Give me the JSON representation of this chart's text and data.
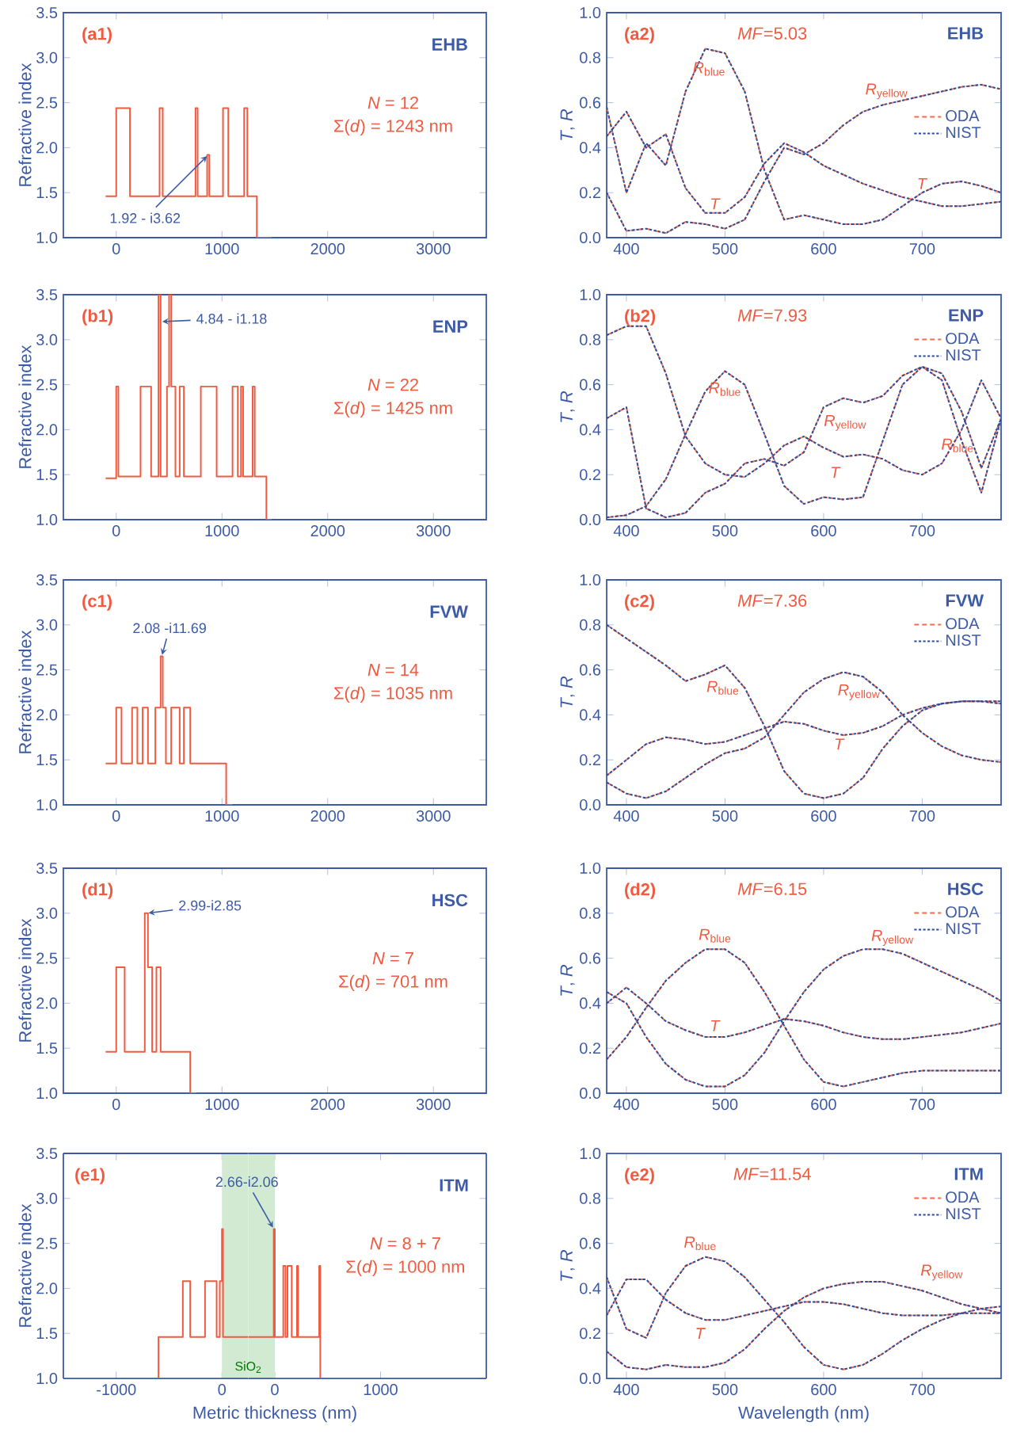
{
  "chart_data": [
    {
      "type": "step",
      "ylabel": "Refractive index",
      "xlim": [
        -500,
        3500
      ],
      "xticks": [
        0,
        1000,
        2000,
        3000
      ],
      "ylim": [
        1,
        3.5
      ],
      "yticks": [
        {
          "value": 1,
          "label": "1.0"
        },
        1.5,
        {
          "value": 2,
          "label": "2.0"
        },
        2.5,
        {
          "value": 3,
          "label": "3.0"
        },
        3.5
      ],
      "x": [
        -100,
        0,
        130,
        410,
        440,
        750,
        770,
        860,
        880,
        1010,
        1060,
        1210,
        1240,
        1330,
        1470
      ],
      "series": [
        {
          "color": "#f05a40",
          "values": [
            1.46,
            2.44,
            1.46,
            2.44,
            1.46,
            2.44,
            1.46,
            1.92,
            1.46,
            2.44,
            1.46,
            2.44,
            1.46,
            1.0,
            1.0
          ]
        }
      ],
      "annotations": [
        "(a1)",
        "EHB",
        "*N* = 12",
        "Σ(*d*) = 1243 nm",
        {
          "text": "1.92 - i3.62",
          "x": 870,
          "y": 1.92
        }
      ]
    },
    {
      "type": "line",
      "ylabel": "*T*, *R*",
      "xlim": [
        380,
        780
      ],
      "xticks": [
        400,
        500,
        600,
        700
      ],
      "ylim": [
        0,
        1
      ],
      "yticks": [
        {
          "value": 0,
          "label": "0.0"
        },
        0.2,
        0.4,
        0.6,
        0.8,
        {
          "value": 1,
          "label": "1.0"
        }
      ],
      "legend": "right",
      "x": [
        380,
        400,
        420,
        440,
        460,
        480,
        500,
        520,
        540,
        560,
        580,
        600,
        620,
        640,
        660,
        680,
        700,
        720,
        740,
        760,
        780
      ],
      "series": [
        {
          "name": "ODA",
          "color": "#f26b4a",
          "line_style": "dashed",
          "values": [
            0.45,
            0.56,
            0.4,
            0.46,
            0.22,
            0.11,
            0.11,
            0.18,
            0.33,
            0.42,
            0.38,
            0.32,
            0.28,
            0.24,
            0.21,
            0.18,
            0.16,
            0.14,
            0.14,
            0.15,
            0.16
          ]
        },
        {
          "color": "#f26b4a",
          "line_style": "dashed",
          "values": [
            0.58,
            0.2,
            0.42,
            0.32,
            0.65,
            0.84,
            0.82,
            0.65,
            0.3,
            0.08,
            0.1,
            0.08,
            0.06,
            0.06,
            0.08,
            0.14,
            0.2,
            0.24,
            0.25,
            0.23,
            0.2
          ]
        },
        {
          "color": "#f26b4a",
          "line_style": "dashed",
          "values": [
            0.2,
            0.03,
            0.04,
            0.02,
            0.07,
            0.06,
            0.04,
            0.08,
            0.25,
            0.4,
            0.37,
            0.42,
            0.5,
            0.56,
            0.59,
            0.61,
            0.63,
            0.65,
            0.67,
            0.68,
            0.66
          ]
        },
        {
          "name": "NIST",
          "color": "#2b4c9e",
          "line_style": "dotted",
          "values": [
            0.45,
            0.56,
            0.4,
            0.46,
            0.22,
            0.11,
            0.11,
            0.18,
            0.33,
            0.42,
            0.38,
            0.32,
            0.28,
            0.24,
            0.21,
            0.18,
            0.16,
            0.14,
            0.14,
            0.15,
            0.16
          ]
        },
        {
          "color": "#2b4c9e",
          "line_style": "dotted",
          "values": [
            0.58,
            0.2,
            0.42,
            0.32,
            0.65,
            0.84,
            0.82,
            0.65,
            0.3,
            0.08,
            0.1,
            0.08,
            0.06,
            0.06,
            0.08,
            0.14,
            0.2,
            0.24,
            0.25,
            0.23,
            0.2
          ]
        },
        {
          "color": "#2b4c9e",
          "line_style": "dotted",
          "values": [
            0.2,
            0.03,
            0.04,
            0.02,
            0.07,
            0.06,
            0.04,
            0.08,
            0.25,
            0.4,
            0.37,
            0.42,
            0.5,
            0.56,
            0.59,
            0.61,
            0.63,
            0.65,
            0.67,
            0.68,
            0.66
          ]
        }
      ],
      "annotations": [
        "(a2)",
        "*MF*=5.03",
        "EHB",
        "*R*$_{blue}$",
        "*T*",
        "*R*$_{yellow}$",
        "*T*"
      ]
    },
    {
      "type": "step",
      "ylabel": "Refractive index",
      "xlim": [
        -500,
        3500
      ],
      "xticks": [
        0,
        1000,
        2000,
        3000
      ],
      "ylim": [
        1,
        3.5
      ],
      "yticks": [
        {
          "value": 1,
          "label": "1.0"
        },
        1.5,
        {
          "value": 2,
          "label": "2.0"
        },
        2.5,
        {
          "value": 3,
          "label": "3.0"
        },
        3.5
      ],
      "x": [
        -100,
        0,
        20,
        230,
        330,
        400,
        420,
        480,
        500,
        520,
        560,
        600,
        640,
        800,
        950,
        1100,
        1150,
        1180,
        1200,
        1290,
        1310,
        1420,
        1470
      ],
      "series": [
        {
          "color": "#f05a40",
          "values": [
            1.46,
            2.48,
            1.48,
            2.48,
            1.48,
            3.5,
            1.48,
            2.48,
            3.5,
            2.48,
            1.48,
            2.48,
            1.48,
            2.48,
            1.48,
            2.48,
            1.48,
            2.48,
            1.48,
            2.48,
            1.48,
            1.0,
            1.0
          ]
        }
      ],
      "annotations": [
        "(b1)",
        "ENP",
        "*N* = 22",
        "Σ(*d*) = 1425 nm",
        {
          "text": "4.84 - i1.18",
          "x": 420,
          "y": 3.2
        }
      ]
    },
    {
      "type": "line",
      "ylabel": "*T*, *R*",
      "xlim": [
        380,
        780
      ],
      "xticks": [
        400,
        500,
        600,
        700
      ],
      "ylim": [
        0,
        1
      ],
      "yticks": [
        {
          "value": 0,
          "label": "0.0"
        },
        0.2,
        0.4,
        0.6,
        0.8,
        {
          "value": 1,
          "label": "1.0"
        }
      ],
      "legend": "top right",
      "x": [
        380,
        400,
        420,
        440,
        460,
        480,
        500,
        520,
        540,
        560,
        580,
        600,
        620,
        640,
        660,
        680,
        700,
        720,
        740,
        760,
        780
      ],
      "series": [
        {
          "name": "ODA",
          "color": "#f26b4a",
          "line_style": "dashed",
          "values": [
            0.82,
            0.86,
            0.86,
            0.65,
            0.37,
            0.25,
            0.2,
            0.19,
            0.25,
            0.33,
            0.37,
            0.32,
            0.28,
            0.29,
            0.27,
            0.22,
            0.2,
            0.25,
            0.4,
            0.62,
            0.45
          ]
        },
        {
          "color": "#f26b4a",
          "line_style": "dashed",
          "values": [
            0.01,
            0.02,
            0.06,
            0.18,
            0.38,
            0.57,
            0.66,
            0.6,
            0.38,
            0.15,
            0.07,
            0.1,
            0.09,
            0.1,
            0.35,
            0.6,
            0.68,
            0.62,
            0.35,
            0.12,
            0.45
          ]
        },
        {
          "color": "#f26b4a",
          "line_style": "dashed",
          "values": [
            0.45,
            0.5,
            0.05,
            0.01,
            0.03,
            0.12,
            0.16,
            0.25,
            0.27,
            0.24,
            0.3,
            0.5,
            0.54,
            0.52,
            0.55,
            0.64,
            0.68,
            0.65,
            0.48,
            0.23,
            0.45
          ]
        },
        {
          "name": "NIST",
          "color": "#2b4c9e",
          "line_style": "dotted",
          "values": [
            0.82,
            0.86,
            0.86,
            0.65,
            0.37,
            0.25,
            0.2,
            0.19,
            0.25,
            0.33,
            0.37,
            0.32,
            0.28,
            0.29,
            0.27,
            0.22,
            0.2,
            0.25,
            0.4,
            0.62,
            0.45
          ]
        },
        {
          "color": "#2b4c9e",
          "line_style": "dotted",
          "values": [
            0.01,
            0.02,
            0.06,
            0.18,
            0.38,
            0.57,
            0.66,
            0.6,
            0.38,
            0.15,
            0.07,
            0.1,
            0.09,
            0.1,
            0.35,
            0.6,
            0.68,
            0.62,
            0.35,
            0.12,
            0.45
          ]
        },
        {
          "color": "#2b4c9e",
          "line_style": "dotted",
          "values": [
            0.45,
            0.5,
            0.05,
            0.01,
            0.03,
            0.12,
            0.16,
            0.25,
            0.27,
            0.24,
            0.3,
            0.5,
            0.54,
            0.52,
            0.55,
            0.64,
            0.68,
            0.65,
            0.48,
            0.23,
            0.45
          ]
        }
      ],
      "annotations": [
        "(b2)",
        "*MF*=7.93",
        "ENP",
        "*R*$_{blue}$",
        "*R*$_{yellow}$",
        "*R*$_{blue}$",
        "*T*"
      ]
    },
    {
      "type": "step",
      "ylabel": "Refractive index",
      "xlim": [
        -500,
        3500
      ],
      "xticks": [
        0,
        1000,
        2000,
        3000
      ],
      "ylim": [
        1,
        3.5
      ],
      "yticks": [
        {
          "value": 1,
          "label": "1.0"
        },
        1.5,
        {
          "value": 2,
          "label": "2.0"
        },
        2.5,
        {
          "value": 3,
          "label": "3.0"
        },
        3.5
      ],
      "x": [
        -100,
        0,
        50,
        150,
        200,
        250,
        300,
        370,
        420,
        440,
        470,
        520,
        600,
        640,
        700,
        1040,
        1100
      ],
      "series": [
        {
          "color": "#f05a40",
          "values": [
            1.46,
            2.08,
            1.46,
            2.08,
            1.46,
            2.08,
            1.46,
            2.08,
            2.65,
            2.08,
            1.46,
            2.08,
            1.46,
            2.08,
            1.46,
            1.0,
            1.0
          ]
        }
      ],
      "annotations": [
        "(c1)",
        "FVW",
        "*N* = 14",
        "Σ(*d*) = 1035 nm",
        {
          "text": "2.08 -i11.69",
          "x": 430,
          "y": 2.65
        }
      ]
    },
    {
      "type": "line",
      "ylabel": "*T*, *R*",
      "xlim": [
        380,
        780
      ],
      "xticks": [
        400,
        500,
        600,
        700
      ],
      "ylim": [
        0,
        1
      ],
      "yticks": [
        {
          "value": 0,
          "label": "0.0"
        },
        0.2,
        0.4,
        0.6,
        0.8,
        {
          "value": 1,
          "label": "1.0"
        }
      ],
      "legend": "top right",
      "x": [
        380,
        400,
        420,
        440,
        460,
        480,
        500,
        520,
        540,
        560,
        580,
        600,
        620,
        640,
        660,
        680,
        700,
        720,
        740,
        760,
        780
      ],
      "series": [
        {
          "name": "ODA",
          "color": "#f26b4a",
          "line_style": "dashed",
          "values": [
            0.13,
            0.2,
            0.27,
            0.3,
            0.29,
            0.27,
            0.28,
            0.31,
            0.34,
            0.37,
            0.36,
            0.33,
            0.31,
            0.32,
            0.35,
            0.4,
            0.43,
            0.45,
            0.46,
            0.46,
            0.46
          ]
        },
        {
          "color": "#f26b4a",
          "line_style": "dashed",
          "values": [
            0.8,
            0.74,
            0.68,
            0.62,
            0.55,
            0.58,
            0.62,
            0.52,
            0.35,
            0.15,
            0.05,
            0.03,
            0.05,
            0.12,
            0.25,
            0.35,
            0.42,
            0.45,
            0.46,
            0.46,
            0.45
          ]
        },
        {
          "color": "#f26b4a",
          "line_style": "dashed",
          "values": [
            0.1,
            0.05,
            0.03,
            0.06,
            0.12,
            0.18,
            0.23,
            0.25,
            0.3,
            0.4,
            0.5,
            0.56,
            0.59,
            0.57,
            0.5,
            0.4,
            0.32,
            0.26,
            0.22,
            0.2,
            0.19
          ]
        },
        {
          "name": "NIST",
          "color": "#2b4c9e",
          "line_style": "dotted",
          "values": [
            0.13,
            0.2,
            0.27,
            0.3,
            0.29,
            0.27,
            0.28,
            0.31,
            0.34,
            0.37,
            0.36,
            0.33,
            0.31,
            0.32,
            0.35,
            0.4,
            0.43,
            0.45,
            0.46,
            0.46,
            0.46
          ]
        },
        {
          "color": "#2b4c9e",
          "line_style": "dotted",
          "values": [
            0.8,
            0.74,
            0.68,
            0.62,
            0.55,
            0.58,
            0.62,
            0.52,
            0.35,
            0.15,
            0.05,
            0.03,
            0.05,
            0.12,
            0.25,
            0.35,
            0.42,
            0.45,
            0.46,
            0.46,
            0.45
          ]
        },
        {
          "color": "#2b4c9e",
          "line_style": "dotted",
          "values": [
            0.1,
            0.05,
            0.03,
            0.06,
            0.12,
            0.18,
            0.23,
            0.25,
            0.3,
            0.4,
            0.5,
            0.56,
            0.59,
            0.57,
            0.5,
            0.4,
            0.32,
            0.26,
            0.22,
            0.2,
            0.19
          ]
        }
      ],
      "annotations": [
        "(c2)",
        "*MF*=7.36",
        "FVW",
        "*R*$_{blue}$",
        "*R*$_{yellow}$",
        "*T*"
      ]
    },
    {
      "type": "step",
      "ylabel": "Refractive index",
      "xlim": [
        -500,
        3500
      ],
      "xticks": [
        0,
        1000,
        2000,
        3000
      ],
      "ylim": [
        1,
        3.5
      ],
      "yticks": [
        {
          "value": 1,
          "label": "1.0"
        },
        1.5,
        {
          "value": 2,
          "label": "2.0"
        },
        2.5,
        {
          "value": 3,
          "label": "3.0"
        },
        3.5
      ],
      "x": [
        -100,
        0,
        80,
        270,
        300,
        340,
        380,
        420,
        700,
        760
      ],
      "series": [
        {
          "color": "#f05a40",
          "values": [
            1.46,
            2.4,
            1.46,
            3.0,
            2.4,
            1.46,
            2.4,
            1.46,
            1.0,
            1.0
          ]
        }
      ],
      "annotations": [
        "(d1)",
        "HSC",
        "*N* = 7",
        "Σ(*d*) = 701 nm",
        {
          "text": "2.99-i2.85",
          "x": 290,
          "y": 3.0
        }
      ]
    },
    {
      "type": "line",
      "ylabel": "*T*, *R*",
      "xlim": [
        380,
        780
      ],
      "xticks": [
        400,
        500,
        600,
        700
      ],
      "ylim": [
        0,
        1
      ],
      "yticks": [
        {
          "value": 0,
          "label": "0.0"
        },
        0.2,
        0.4,
        0.6,
        0.8,
        {
          "value": 1,
          "label": "1.0"
        }
      ],
      "legend": "top right",
      "x": [
        380,
        400,
        420,
        440,
        460,
        480,
        500,
        520,
        540,
        560,
        580,
        600,
        620,
        640,
        660,
        680,
        700,
        720,
        740,
        760,
        780
      ],
      "series": [
        {
          "name": "ODA",
          "color": "#f26b4a",
          "line_style": "dashed",
          "values": [
            0.4,
            0.47,
            0.4,
            0.32,
            0.28,
            0.25,
            0.25,
            0.27,
            0.3,
            0.33,
            0.32,
            0.3,
            0.27,
            0.25,
            0.24,
            0.24,
            0.25,
            0.26,
            0.27,
            0.29,
            0.31
          ]
        },
        {
          "color": "#f26b4a",
          "line_style": "dashed",
          "values": [
            0.15,
            0.25,
            0.38,
            0.5,
            0.58,
            0.64,
            0.64,
            0.58,
            0.45,
            0.3,
            0.15,
            0.05,
            0.03,
            0.05,
            0.07,
            0.09,
            0.1,
            0.1,
            0.1,
            0.1,
            0.1
          ]
        },
        {
          "color": "#f26b4a",
          "line_style": "dashed",
          "values": [
            0.45,
            0.4,
            0.25,
            0.13,
            0.06,
            0.03,
            0.03,
            0.08,
            0.18,
            0.32,
            0.45,
            0.55,
            0.61,
            0.64,
            0.64,
            0.62,
            0.58,
            0.54,
            0.5,
            0.46,
            0.41
          ]
        },
        {
          "name": "NIST",
          "color": "#2b4c9e",
          "line_style": "dotted",
          "values": [
            0.4,
            0.47,
            0.4,
            0.32,
            0.28,
            0.25,
            0.25,
            0.27,
            0.3,
            0.33,
            0.32,
            0.3,
            0.27,
            0.25,
            0.24,
            0.24,
            0.25,
            0.26,
            0.27,
            0.29,
            0.31
          ]
        },
        {
          "color": "#2b4c9e",
          "line_style": "dotted",
          "values": [
            0.15,
            0.25,
            0.38,
            0.5,
            0.58,
            0.64,
            0.64,
            0.58,
            0.45,
            0.3,
            0.15,
            0.05,
            0.03,
            0.05,
            0.07,
            0.09,
            0.1,
            0.1,
            0.1,
            0.1,
            0.1
          ]
        },
        {
          "color": "#2b4c9e",
          "line_style": "dotted",
          "values": [
            0.45,
            0.4,
            0.25,
            0.13,
            0.06,
            0.03,
            0.03,
            0.08,
            0.18,
            0.32,
            0.45,
            0.55,
            0.61,
            0.64,
            0.64,
            0.62,
            0.58,
            0.54,
            0.5,
            0.46,
            0.41
          ]
        }
      ],
      "annotations": [
        "(d2)",
        "*MF*=6.15",
        "HSC",
        "*R*$_{blue}$",
        "*R*$_{yellow}$",
        "*T*"
      ]
    },
    {
      "type": "step",
      "ylabel": "Refractive index",
      "xlabel": "Metric thickness (nm)",
      "xlim": [
        -1500,
        250
      ],
      "xticks": [
        -1000,
        0
      ],
      "ylim": [
        1,
        3.5
      ],
      "yticks": [
        {
          "value": 1,
          "label": "1.0"
        },
        1.5,
        {
          "value": 2,
          "label": "2.0"
        },
        2.5,
        {
          "value": 3,
          "label": "3.0"
        },
        3.5
      ],
      "x": [
        -650,
        -600,
        -370,
        -300,
        -160,
        -50,
        -20,
        0,
        10,
        250
      ],
      "series": [
        {
          "color": "#f05a40",
          "values": [
            1.0,
            1.46,
            2.08,
            1.46,
            2.08,
            1.46,
            2.08,
            2.66,
            1.46,
            1.46
          ]
        }
      ],
      "bands": [
        {
          "axis": "x",
          "from": 0,
          "to": 250,
          "color": "#d2ead2"
        }
      ],
      "annotations": [
        "(e1)"
      ]
    },
    {
      "type": "step",
      "tick_labels": "x",
      "xlim": [
        -250,
        2000
      ],
      "xticks": [
        0,
        1000
      ],
      "ylim": [
        1,
        3.5
      ],
      "yticks": [
        1,
        1.5,
        2,
        2.5,
        3,
        3.5
      ],
      "x": [
        -250,
        -10,
        0,
        80,
        100,
        120,
        160,
        210,
        220,
        420,
        430,
        500
      ],
      "series": [
        {
          "color": "#f05a40",
          "values": [
            1.46,
            2.66,
            1.46,
            2.25,
            1.46,
            2.25,
            1.46,
            2.25,
            1.46,
            2.25,
            1.0,
            1.0
          ]
        }
      ],
      "bands": [
        {
          "axis": "x",
          "from": -250,
          "to": 0,
          "label": "SiO$_{2}$",
          "color": "#d2ead2"
        }
      ],
      "annotations": [
        "ITM",
        "*N* = 8 + 7",
        "Σ(*d*) = 1000 nm",
        {
          "text": "2.66-i2.06",
          "x": -10,
          "y": 2.66
        }
      ]
    },
    {
      "type": "line",
      "ylabel": "*T*, *R*",
      "xlabel": "Wavelength (nm)",
      "xlim": [
        380,
        780
      ],
      "xticks": [
        400,
        500,
        600,
        700
      ],
      "ylim": [
        0,
        1
      ],
      "yticks": [
        {
          "value": 0,
          "label": "0.0"
        },
        0.2,
        0.4,
        0.6,
        0.8,
        {
          "value": 1,
          "label": "1.0"
        }
      ],
      "legend": "top right",
      "x": [
        380,
        400,
        420,
        440,
        460,
        480,
        500,
        520,
        540,
        560,
        580,
        600,
        620,
        640,
        660,
        680,
        700,
        720,
        740,
        760,
        780
      ],
      "series": [
        {
          "name": "ODA",
          "color": "#f26b4a",
          "line_style": "dashed",
          "values": [
            0.28,
            0.44,
            0.44,
            0.35,
            0.29,
            0.26,
            0.26,
            0.28,
            0.3,
            0.32,
            0.34,
            0.34,
            0.33,
            0.31,
            0.29,
            0.28,
            0.28,
            0.28,
            0.29,
            0.29,
            0.29
          ]
        },
        {
          "color": "#f26b4a",
          "line_style": "dashed",
          "values": [
            0.45,
            0.22,
            0.18,
            0.38,
            0.5,
            0.54,
            0.52,
            0.45,
            0.35,
            0.25,
            0.14,
            0.06,
            0.04,
            0.06,
            0.11,
            0.17,
            0.22,
            0.26,
            0.29,
            0.31,
            0.32
          ]
        },
        {
          "color": "#f26b4a",
          "line_style": "dashed",
          "values": [
            0.12,
            0.05,
            0.04,
            0.06,
            0.05,
            0.05,
            0.07,
            0.13,
            0.22,
            0.3,
            0.36,
            0.4,
            0.42,
            0.43,
            0.43,
            0.41,
            0.39,
            0.36,
            0.33,
            0.31,
            0.29
          ]
        },
        {
          "name": "NIST",
          "color": "#2b4c9e",
          "line_style": "dotted",
          "values": [
            0.28,
            0.44,
            0.44,
            0.35,
            0.29,
            0.26,
            0.26,
            0.28,
            0.3,
            0.32,
            0.34,
            0.34,
            0.33,
            0.31,
            0.29,
            0.28,
            0.28,
            0.28,
            0.29,
            0.29,
            0.29
          ]
        },
        {
          "color": "#2b4c9e",
          "line_style": "dotted",
          "values": [
            0.45,
            0.22,
            0.18,
            0.38,
            0.5,
            0.54,
            0.52,
            0.45,
            0.35,
            0.25,
            0.14,
            0.06,
            0.04,
            0.06,
            0.11,
            0.17,
            0.22,
            0.26,
            0.29,
            0.31,
            0.32
          ]
        },
        {
          "color": "#2b4c9e",
          "line_style": "dotted",
          "values": [
            0.12,
            0.05,
            0.04,
            0.06,
            0.05,
            0.05,
            0.07,
            0.13,
            0.22,
            0.3,
            0.36,
            0.4,
            0.42,
            0.43,
            0.43,
            0.41,
            0.39,
            0.36,
            0.33,
            0.31,
            0.29
          ]
        }
      ],
      "annotations": [
        "(e2)",
        "*MF*=11.54",
        "ITM",
        "*R*$_{blue}$",
        "*T*",
        "*R*$_{yellow}$"
      ]
    }
  ]
}
